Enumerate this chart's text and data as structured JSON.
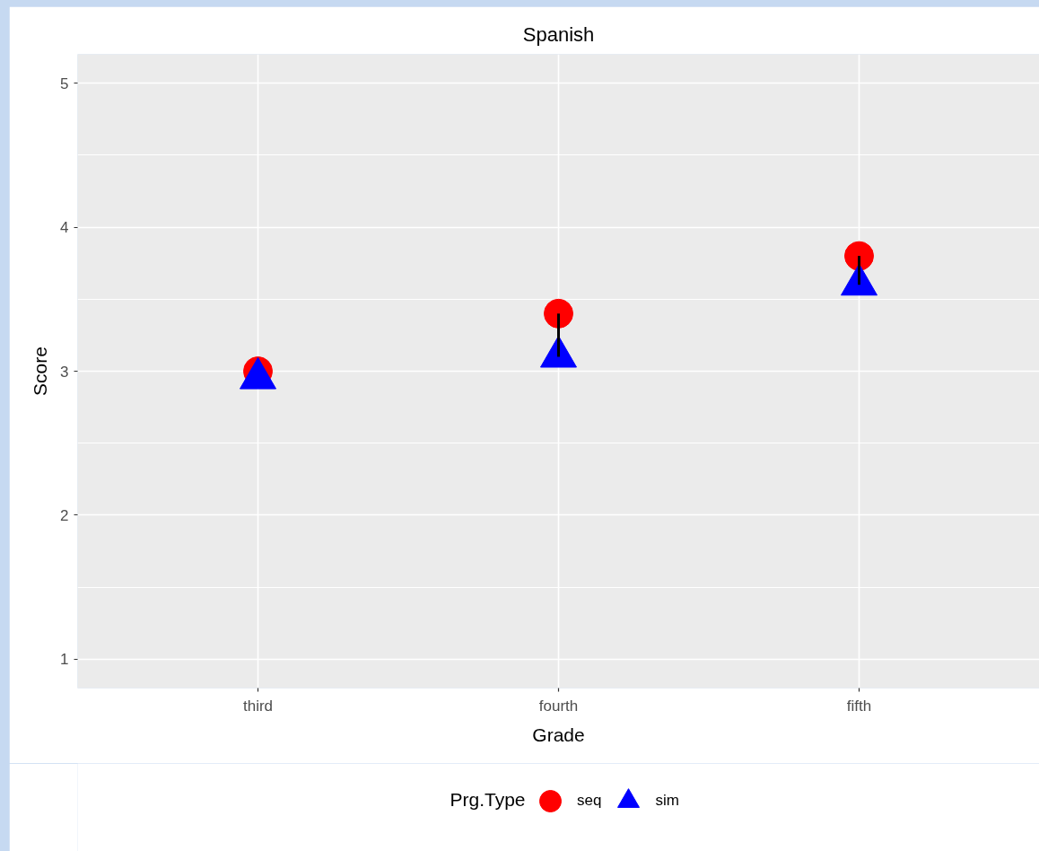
{
  "chart_data": {
    "type": "scatter",
    "title": "Spanish",
    "xlabel": "Grade",
    "ylabel": "Score",
    "legend_title": "Prg.Type",
    "categories": [
      "third",
      "fourth",
      "fifth"
    ],
    "series": [
      {
        "name": "seq",
        "color": "#ff0000",
        "marker": "circle",
        "values": [
          3.0,
          3.4,
          3.8
        ]
      },
      {
        "name": "sim",
        "color": "#0000ff",
        "marker": "triangle",
        "values": [
          2.95,
          3.1,
          3.6
        ]
      },
      {
        "type": "line",
        "color": "#000000",
        "x": [
          "fourth",
          "fourth"
        ],
        "values": [
          3.1,
          3.4
        ]
      },
      {
        "type": "line",
        "color": "#000000",
        "x": [
          "fifth",
          "fifth"
        ],
        "values": [
          3.6,
          3.8
        ]
      }
    ],
    "ylim": [
      0.8,
      5.2
    ],
    "yticks": [
      1,
      2,
      3,
      4,
      5
    ],
    "grid": true,
    "legend": "bottom"
  }
}
